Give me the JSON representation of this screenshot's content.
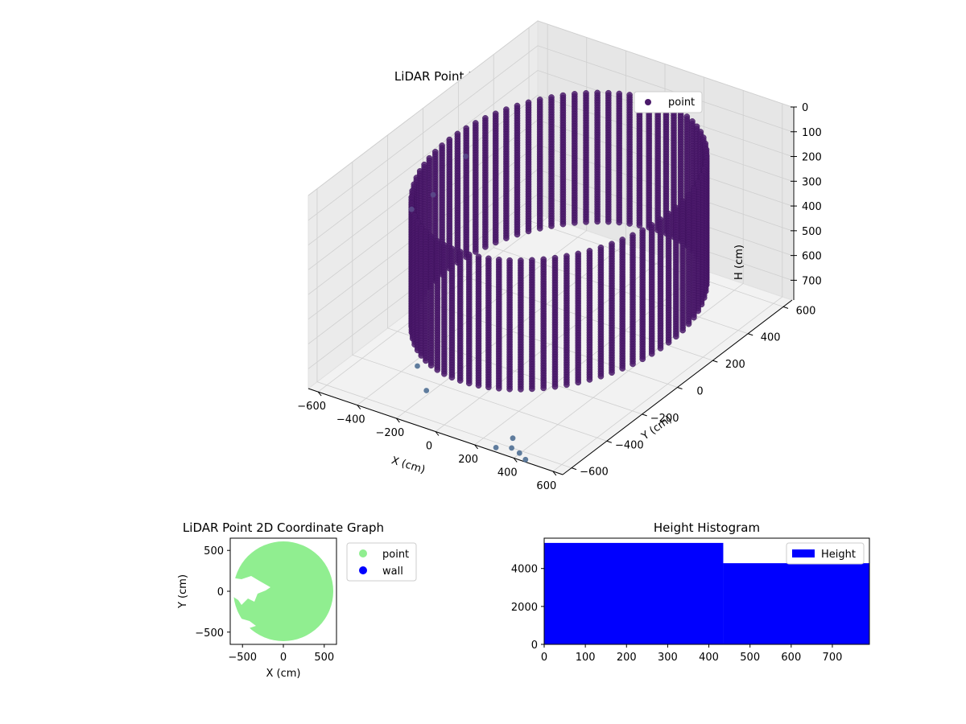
{
  "figure": {
    "background": "#ffffff"
  },
  "chart_data": [
    {
      "type": "scatter3d",
      "title": "LiDAR Point 3D Coordinate Graph",
      "xlabel": "X (cm)",
      "ylabel": "Y (cm)",
      "zlabel": "H (cm)",
      "xlim": [
        -650,
        650
      ],
      "ylim": [
        -650,
        650
      ],
      "zlim": [
        780,
        0
      ],
      "x_ticks": [
        "−600",
        "−400",
        "−200",
        "0",
        "200",
        "400",
        "600"
      ],
      "y_ticks": [
        "−600",
        "−400",
        "−200",
        "0",
        "200",
        "400",
        "600"
      ],
      "z_ticks": [
        "0",
        "100",
        "200",
        "300",
        "400",
        "500",
        "600",
        "700"
      ],
      "legend": {
        "position": "top-right",
        "entries": [
          "point"
        ]
      },
      "colormap": "viridis",
      "point_color": "#4b1a6b",
      "grid": true,
      "description_of_data": [
        {
          "shape": "wall-ring",
          "center_x": 0,
          "center_y": 50,
          "radius": 560,
          "h_range": [
            130,
            650
          ]
        },
        {
          "shape": "outliers",
          "points": [
            {
              "x": -540,
              "y": 120,
              "h": 230
            },
            {
              "x": -580,
              "y": -20,
              "h": 320
            },
            {
              "x": -600,
              "y": -120,
              "h": 330
            },
            {
              "x": -300,
              "y": -420,
              "h": 720
            },
            {
              "x": -200,
              "y": -480,
              "h": 760
            },
            {
              "x": 380,
              "y": -640,
              "h": 750
            },
            {
              "x": 350,
              "y": -600,
              "h": 740
            },
            {
              "x": 420,
              "y": -640,
              "h": 760
            },
            {
              "x": 460,
              "y": -650,
              "h": 770
            },
            {
              "x": 300,
              "y": -640,
              "h": 770
            }
          ]
        }
      ]
    },
    {
      "type": "scatter",
      "title": "LiDAR Point 2D Coordinate Graph",
      "xlabel": "X (cm)",
      "ylabel": "Y (cm)",
      "xlim": [
        -650,
        650
      ],
      "ylim": [
        -650,
        650
      ],
      "x_ticks": [
        "−500",
        "0",
        "500"
      ],
      "y_ticks": [
        "−500",
        "0",
        "500"
      ],
      "legend": {
        "position": "outside-right",
        "entries": [
          "point",
          "wall"
        ]
      },
      "series": [
        {
          "name": "point",
          "color": "#90ee90",
          "shape": "filled-disk",
          "center_x": 0,
          "center_y": 0,
          "radius": 600
        },
        {
          "name": "wall",
          "color": "#0000ff",
          "points": []
        }
      ]
    },
    {
      "type": "histogram",
      "title": "Height Histogram",
      "xlabel": "",
      "ylabel": "",
      "xlim": [
        0,
        790
      ],
      "ylim": [
        0,
        5600
      ],
      "x_ticks": [
        "0",
        "100",
        "200",
        "300",
        "400",
        "500",
        "600",
        "700"
      ],
      "y_ticks": [
        "0",
        "2000",
        "4000"
      ],
      "legend": {
        "position": "top-right",
        "entries": [
          "Height"
        ]
      },
      "color": "#0000ff",
      "bins": [
        {
          "x0": 0,
          "x1": 435,
          "count": 5350
        },
        {
          "x0": 435,
          "x1": 790,
          "count": 4280
        }
      ]
    }
  ]
}
